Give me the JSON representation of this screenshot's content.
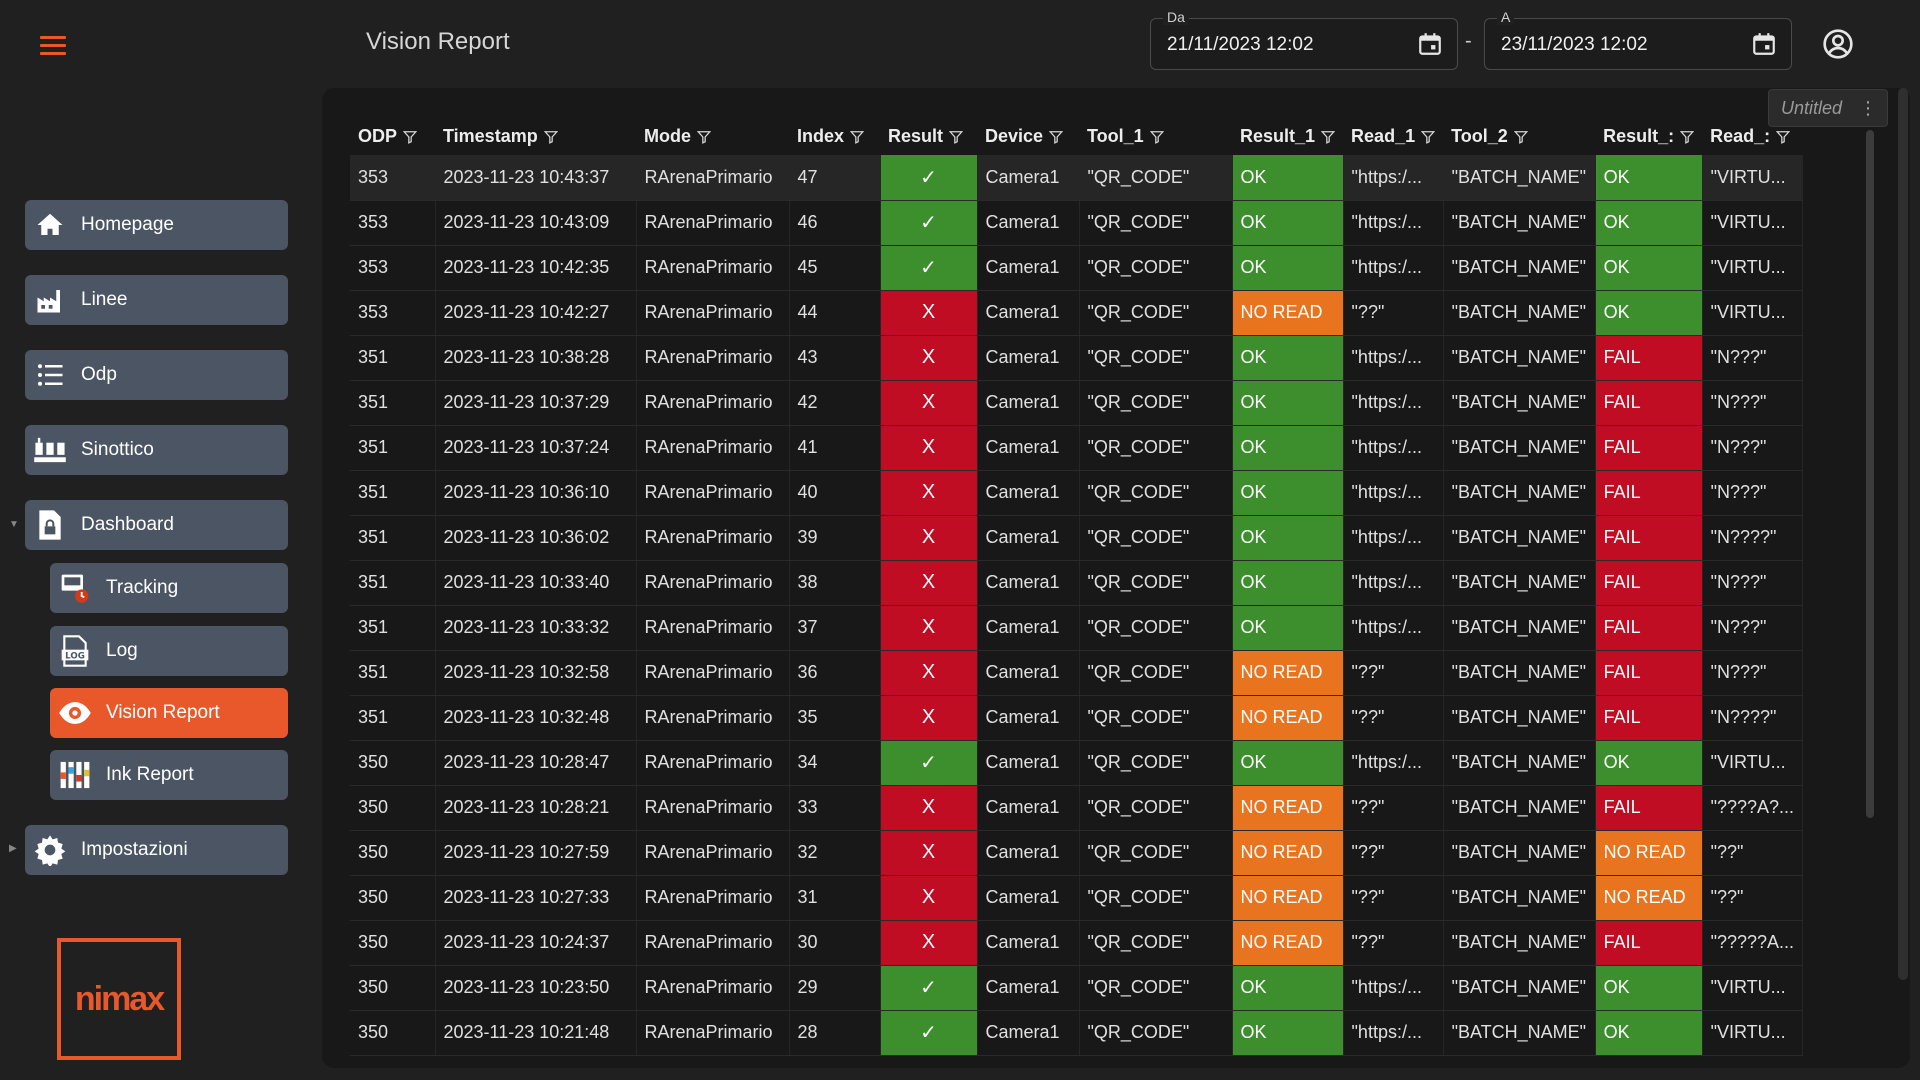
{
  "header": {
    "title": "Vision Report",
    "from_label": "Da",
    "from_value": "21/11/2023 12:02",
    "to_label": "A",
    "to_value": "23/11/2023 12:02",
    "separator": "-"
  },
  "sidebar": {
    "items": [
      {
        "label": "Homepage",
        "icon": "home-icon"
      },
      {
        "label": "Linee",
        "icon": "factory-icon"
      },
      {
        "label": "Odp",
        "icon": "list-icon"
      },
      {
        "label": "Sinottico",
        "icon": "machines-icon"
      },
      {
        "label": "Dashboard",
        "icon": "document-lock-icon"
      },
      {
        "label": "Tracking",
        "icon": "tracking-icon"
      },
      {
        "label": "Log",
        "icon": "log-file-icon"
      },
      {
        "label": "Vision Report",
        "icon": "eye-icon"
      },
      {
        "label": "Ink Report",
        "icon": "ink-icon"
      },
      {
        "label": "Impostazioni",
        "icon": "gear-icon"
      }
    ],
    "logo_text": "nimax"
  },
  "panel": {
    "untitled_label": "Untitled"
  },
  "table": {
    "columns": [
      "ODP",
      "Timestamp",
      "Mode",
      "Index",
      "Result",
      "Device",
      "Tool_1",
      "Result_1",
      "Read_1",
      "Tool_2",
      "Result_:",
      "Read_:"
    ],
    "rows": [
      [
        "353",
        "2023-11-23 10:43:37",
        "RArenaPrimario",
        "47",
        "✓",
        "Camera1",
        "\"QR_CODE\"",
        "OK",
        "\"https:/...",
        "\"BATCH_NAME\"",
        "OK",
        "\"VIRTU..."
      ],
      [
        "353",
        "2023-11-23 10:43:09",
        "RArenaPrimario",
        "46",
        "✓",
        "Camera1",
        "\"QR_CODE\"",
        "OK",
        "\"https:/...",
        "\"BATCH_NAME\"",
        "OK",
        "\"VIRTU..."
      ],
      [
        "353",
        "2023-11-23 10:42:35",
        "RArenaPrimario",
        "45",
        "✓",
        "Camera1",
        "\"QR_CODE\"",
        "OK",
        "\"https:/...",
        "\"BATCH_NAME\"",
        "OK",
        "\"VIRTU..."
      ],
      [
        "353",
        "2023-11-23 10:42:27",
        "RArenaPrimario",
        "44",
        "X",
        "Camera1",
        "\"QR_CODE\"",
        "NO READ",
        "\"??\"",
        "\"BATCH_NAME\"",
        "OK",
        "\"VIRTU..."
      ],
      [
        "351",
        "2023-11-23 10:38:28",
        "RArenaPrimario",
        "43",
        "X",
        "Camera1",
        "\"QR_CODE\"",
        "OK",
        "\"https:/...",
        "\"BATCH_NAME\"",
        "FAIL",
        "\"N???\""
      ],
      [
        "351",
        "2023-11-23 10:37:29",
        "RArenaPrimario",
        "42",
        "X",
        "Camera1",
        "\"QR_CODE\"",
        "OK",
        "\"https:/...",
        "\"BATCH_NAME\"",
        "FAIL",
        "\"N???\""
      ],
      [
        "351",
        "2023-11-23 10:37:24",
        "RArenaPrimario",
        "41",
        "X",
        "Camera1",
        "\"QR_CODE\"",
        "OK",
        "\"https:/...",
        "\"BATCH_NAME\"",
        "FAIL",
        "\"N???\""
      ],
      [
        "351",
        "2023-11-23 10:36:10",
        "RArenaPrimario",
        "40",
        "X",
        "Camera1",
        "\"QR_CODE\"",
        "OK",
        "\"https:/...",
        "\"BATCH_NAME\"",
        "FAIL",
        "\"N???\""
      ],
      [
        "351",
        "2023-11-23 10:36:02",
        "RArenaPrimario",
        "39",
        "X",
        "Camera1",
        "\"QR_CODE\"",
        "OK",
        "\"https:/...",
        "\"BATCH_NAME\"",
        "FAIL",
        "\"N????\""
      ],
      [
        "351",
        "2023-11-23 10:33:40",
        "RArenaPrimario",
        "38",
        "X",
        "Camera1",
        "\"QR_CODE\"",
        "OK",
        "\"https:/...",
        "\"BATCH_NAME\"",
        "FAIL",
        "\"N???\""
      ],
      [
        "351",
        "2023-11-23 10:33:32",
        "RArenaPrimario",
        "37",
        "X",
        "Camera1",
        "\"QR_CODE\"",
        "OK",
        "\"https:/...",
        "\"BATCH_NAME\"",
        "FAIL",
        "\"N???\""
      ],
      [
        "351",
        "2023-11-23 10:32:58",
        "RArenaPrimario",
        "36",
        "X",
        "Camera1",
        "\"QR_CODE\"",
        "NO READ",
        "\"??\"",
        "\"BATCH_NAME\"",
        "FAIL",
        "\"N???\""
      ],
      [
        "351",
        "2023-11-23 10:32:48",
        "RArenaPrimario",
        "35",
        "X",
        "Camera1",
        "\"QR_CODE\"",
        "NO READ",
        "\"??\"",
        "\"BATCH_NAME\"",
        "FAIL",
        "\"N????\""
      ],
      [
        "350",
        "2023-11-23 10:28:47",
        "RArenaPrimario",
        "34",
        "✓",
        "Camera1",
        "\"QR_CODE\"",
        "OK",
        "\"https:/...",
        "\"BATCH_NAME\"",
        "OK",
        "\"VIRTU..."
      ],
      [
        "350",
        "2023-11-23 10:28:21",
        "RArenaPrimario",
        "33",
        "X",
        "Camera1",
        "\"QR_CODE\"",
        "NO READ",
        "\"??\"",
        "\"BATCH_NAME\"",
        "FAIL",
        "\"????A?..."
      ],
      [
        "350",
        "2023-11-23 10:27:59",
        "RArenaPrimario",
        "32",
        "X",
        "Camera1",
        "\"QR_CODE\"",
        "NO READ",
        "\"??\"",
        "\"BATCH_NAME\"",
        "NO READ",
        "\"??\""
      ],
      [
        "350",
        "2023-11-23 10:27:33",
        "RArenaPrimario",
        "31",
        "X",
        "Camera1",
        "\"QR_CODE\"",
        "NO READ",
        "\"??\"",
        "\"BATCH_NAME\"",
        "NO READ",
        "\"??\""
      ],
      [
        "350",
        "2023-11-23 10:24:37",
        "RArenaPrimario",
        "30",
        "X",
        "Camera1",
        "\"QR_CODE\"",
        "NO READ",
        "\"??\"",
        "\"BATCH_NAME\"",
        "FAIL",
        "\"?????A..."
      ],
      [
        "350",
        "2023-11-23 10:23:50",
        "RArenaPrimario",
        "29",
        "✓",
        "Camera1",
        "\"QR_CODE\"",
        "OK",
        "\"https:/...",
        "\"BATCH_NAME\"",
        "OK",
        "\"VIRTU..."
      ],
      [
        "350",
        "2023-11-23 10:21:48",
        "RArenaPrimario",
        "28",
        "✓",
        "Camera1",
        "\"QR_CODE\"",
        "OK",
        "\"https:/...",
        "\"BATCH_NAME\"",
        "OK",
        "\"VIRTU..."
      ]
    ]
  },
  "colors": {
    "accent": "#e8582a",
    "ok": "#3d8f2e",
    "fail": "#c00d23",
    "noread": "#e8741f",
    "nav": "#4b5563"
  }
}
